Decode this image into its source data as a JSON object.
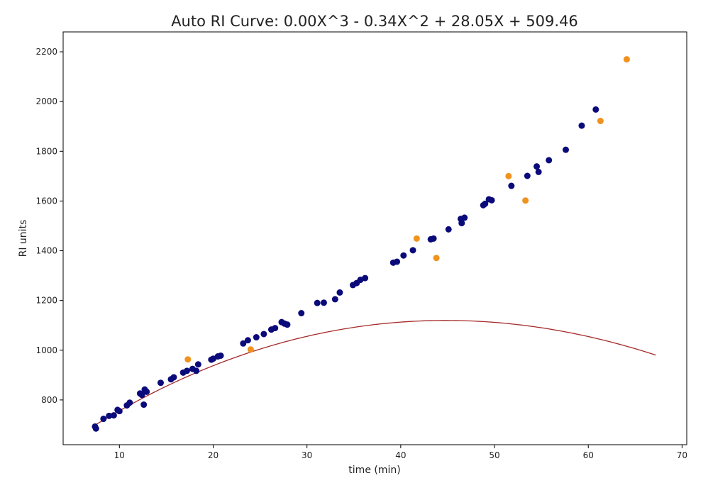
{
  "chart_data": {
    "type": "scatter",
    "title": "Auto RI Curve: 0.00X^3 - 0.34X^2 + 28.05X + 509.46",
    "xlabel": "time (min)",
    "ylabel": "RI units",
    "xlim": [
      4,
      70.5
    ],
    "ylim": [
      620,
      2280
    ],
    "xticks": [
      10,
      20,
      30,
      40,
      50,
      60,
      70
    ],
    "yticks": [
      800,
      1000,
      1200,
      1400,
      1600,
      1800,
      2000,
      2200
    ],
    "grid": false,
    "colors": {
      "series_a": "#0a0a7a",
      "series_b": "#f0921e",
      "fit": "#a52a2a",
      "axes": "#000000"
    },
    "fit": {
      "coefficients": [
        0.0004,
        -0.34,
        28.05,
        509.46
      ],
      "x_range": [
        7.2,
        67.2
      ]
    },
    "series": [
      {
        "color": "#0a0a7a",
        "points": [
          [
            7.4,
            693
          ],
          [
            7.5,
            685
          ],
          [
            8.3,
            724
          ],
          [
            8.9,
            736
          ],
          [
            9.4,
            738
          ],
          [
            9.8,
            760
          ],
          [
            10.0,
            755
          ],
          [
            10.8,
            778
          ],
          [
            11.1,
            789
          ],
          [
            12.2,
            826
          ],
          [
            12.4,
            820
          ],
          [
            12.7,
            842
          ],
          [
            12.6,
            781
          ],
          [
            12.9,
            833
          ],
          [
            14.4,
            869
          ],
          [
            15.5,
            883
          ],
          [
            15.8,
            891
          ],
          [
            16.8,
            910
          ],
          [
            17.2,
            917
          ],
          [
            17.8,
            925
          ],
          [
            18.2,
            917
          ],
          [
            18.4,
            943
          ],
          [
            19.8,
            962
          ],
          [
            20.0,
            966
          ],
          [
            20.5,
            975
          ],
          [
            20.8,
            978
          ],
          [
            23.2,
            1027
          ],
          [
            23.7,
            1040
          ],
          [
            24.6,
            1052
          ],
          [
            25.4,
            1065
          ],
          [
            26.2,
            1083
          ],
          [
            26.6,
            1089
          ],
          [
            27.3,
            1113
          ],
          [
            27.6,
            1107
          ],
          [
            27.9,
            1103
          ],
          [
            29.4,
            1149
          ],
          [
            31.1,
            1190
          ],
          [
            31.8,
            1191
          ],
          [
            33.0,
            1205
          ],
          [
            33.5,
            1232
          ],
          [
            34.9,
            1262
          ],
          [
            35.3,
            1270
          ],
          [
            35.7,
            1283
          ],
          [
            36.2,
            1290
          ],
          [
            39.2,
            1352
          ],
          [
            39.6,
            1356
          ],
          [
            40.3,
            1381
          ],
          [
            41.3,
            1402
          ],
          [
            43.2,
            1446
          ],
          [
            43.5,
            1449
          ],
          [
            45.1,
            1486
          ],
          [
            46.4,
            1528
          ],
          [
            46.5,
            1511
          ],
          [
            46.8,
            1533
          ],
          [
            48.8,
            1583
          ],
          [
            49.0,
            1589
          ],
          [
            49.4,
            1607
          ],
          [
            49.7,
            1603
          ],
          [
            51.8,
            1661
          ],
          [
            53.5,
            1701
          ],
          [
            54.5,
            1739
          ],
          [
            54.7,
            1717
          ],
          [
            55.8,
            1764
          ],
          [
            57.6,
            1806
          ],
          [
            59.3,
            1903
          ],
          [
            60.8,
            1968
          ]
        ]
      },
      {
        "color": "#f0921e",
        "points": [
          [
            17.3,
            963
          ],
          [
            24.0,
            1003
          ],
          [
            41.7,
            1449
          ],
          [
            43.8,
            1371
          ],
          [
            51.5,
            1700
          ],
          [
            53.3,
            1602
          ],
          [
            61.3,
            1922
          ],
          [
            64.1,
            2170
          ]
        ]
      }
    ]
  }
}
